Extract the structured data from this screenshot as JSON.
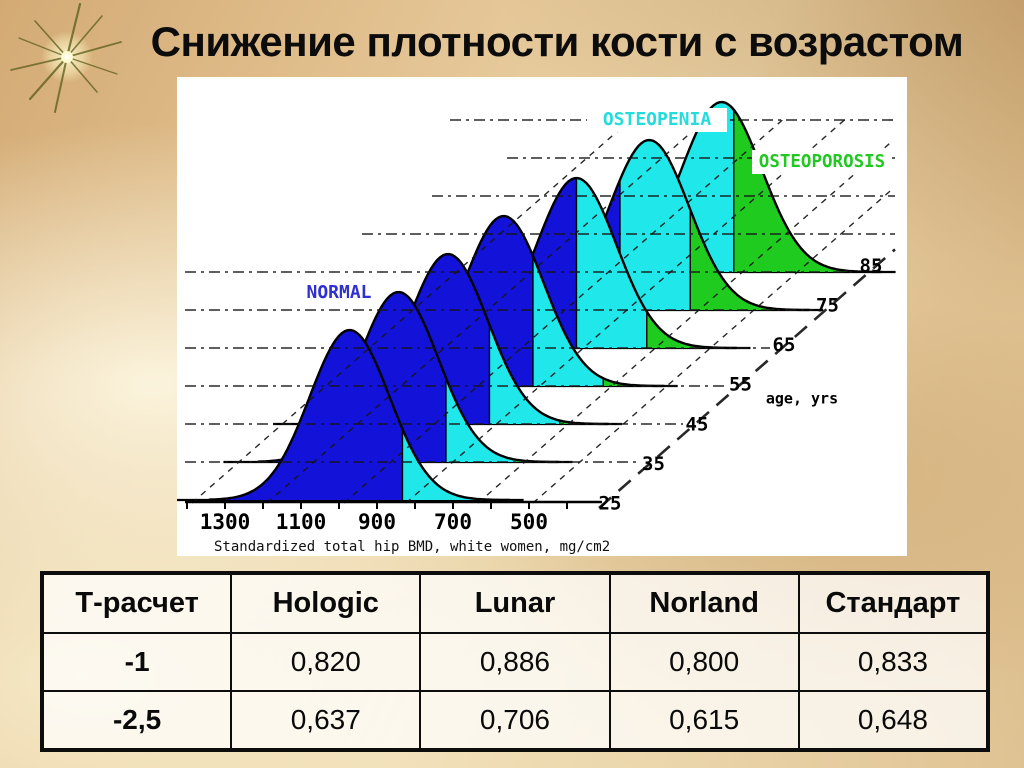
{
  "slide": {
    "title": "Снижение плотности кости с возрастом"
  },
  "chart_data": {
    "type": "area",
    "subtype": "cascaded-age-distributions",
    "xlabel": "Standardized total hip BMD, white women, mg/cm2",
    "x_ticks": [
      1300,
      1100,
      900,
      700,
      500
    ],
    "x_axis_range": {
      "min": 400,
      "max": 1400,
      "tick_step": 100
    },
    "age_axis_label": "age, yrs",
    "ages": [
      25,
      35,
      45,
      55,
      65,
      75,
      85
    ],
    "sd_bmd": 105,
    "series": [
      {
        "age": 25,
        "mean_bmd": 972
      },
      {
        "age": 35,
        "mean_bmd": 958
      },
      {
        "age": 45,
        "mean_bmd": 942
      },
      {
        "age": 55,
        "mean_bmd": 910
      },
      {
        "age": 65,
        "mean_bmd": 833
      },
      {
        "age": 75,
        "mean_bmd": 756
      },
      {
        "age": 85,
        "mean_bmd": 680
      }
    ],
    "cutoffs": {
      "t_minus_1_bmd": 833,
      "t_minus_2_5_bmd": 648
    },
    "zone_labels": [
      {
        "text": "NORMAL",
        "color": "#3030d0"
      },
      {
        "text": "OSTEOPENIA",
        "color": "#25dcdc"
      },
      {
        "text": "OSTEOPOROSIS",
        "color": "#22c822"
      }
    ],
    "colors": {
      "normal": "#1312d8",
      "osteopenia": "#20e7e9",
      "osteoporosis": "#1ecb1e"
    },
    "legend_position": "in-plot",
    "grid": true
  },
  "table": {
    "headers": [
      "Т-расчет",
      "Hologic",
      "Lunar",
      "Norland",
      "Стандарт"
    ],
    "rows": [
      [
        "-1",
        "0,820",
        "0,886",
        "0,800",
        "0,833"
      ],
      [
        "-2,5",
        "0,637",
        "0,706",
        "0,615",
        "0,648"
      ]
    ]
  }
}
